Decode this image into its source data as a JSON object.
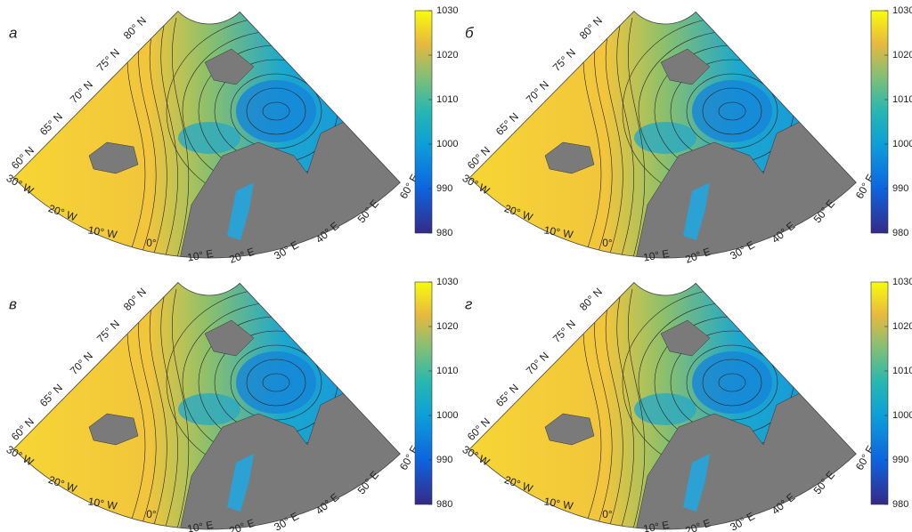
{
  "panels": [
    {
      "label": "а"
    },
    {
      "label": "б"
    },
    {
      "label": "в"
    },
    {
      "label": "г"
    }
  ],
  "colorbar": {
    "lim": [
      980,
      1030
    ],
    "ticks": [
      980,
      990,
      1000,
      1010,
      1020,
      1030
    ]
  },
  "lat_labels": [
    "80° N",
    "75° N",
    "70° N",
    "65° N",
    "60° N"
  ],
  "lon_labels": [
    "30° W",
    "20° W",
    "10° W",
    "0°",
    "10° E",
    "20° E",
    "30° E",
    "40° E",
    "50° E",
    "60° E"
  ]
}
